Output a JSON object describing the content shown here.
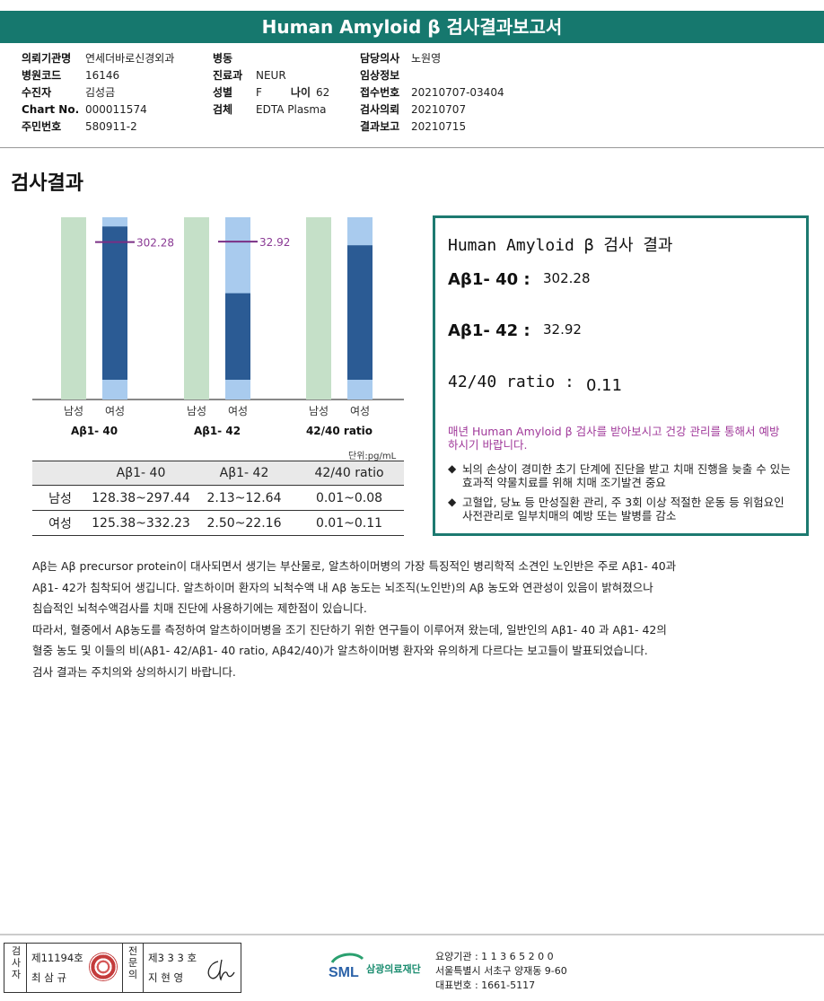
{
  "header": {
    "title": "Human Amyloid β 검사결과보고서"
  },
  "info": {
    "col_a": [
      {
        "k": "의뢰기관명",
        "v": "연세더바로신경외과"
      },
      {
        "k": "병원코드",
        "v": "16146"
      },
      {
        "k": "수진자",
        "v": "김성금"
      },
      {
        "k": "Chart No.",
        "v": "000011574"
      },
      {
        "k": "주민번호",
        "v": "580911-2"
      }
    ],
    "col_b": {
      "ward_k": "병동",
      "ward_v": "",
      "dept_k": "진료과",
      "dept_v": "NEUR",
      "sex_k": "성별",
      "sex_v": "F",
      "age_k": "나이",
      "age_v": "62",
      "specimen_k": "검체",
      "specimen_v": "EDTA Plasma"
    },
    "col_c": [
      {
        "k": "담당의사",
        "v": "노원영"
      },
      {
        "k": "임상정보",
        "v": ""
      },
      {
        "k": "접수번호",
        "v": "20210707-03404"
      },
      {
        "k": "검사의뢰",
        "v": "20210707"
      },
      {
        "k": "결과보고",
        "v": "20210715"
      }
    ]
  },
  "section_title": "검사결과",
  "chart_data": {
    "type": "bar",
    "groups": [
      "Aβ1- 40",
      "Aβ1- 42",
      "42/40 ratio"
    ],
    "sub_labels": [
      "남성",
      "여성"
    ],
    "series": [
      {
        "name": "남성",
        "ranges": [
          [
            128.38,
            297.44
          ],
          [
            2.13,
            12.64
          ],
          [
            0.01,
            0.08
          ]
        ]
      },
      {
        "name": "여성",
        "ranges": [
          [
            125.38,
            332.23
          ],
          [
            2.5,
            22.16
          ],
          [
            0.01,
            0.11
          ]
        ]
      }
    ],
    "patient_values": [
      302.28,
      32.92,
      null
    ],
    "patient_labels": [
      "302.28",
      "32.92",
      ""
    ],
    "colors": {
      "male_bar": "#c5e0c8",
      "female_bg": "#a9cbee",
      "female_range": "#2b5b94",
      "marker": "#7a2f85"
    }
  },
  "unit": "단위:pg/mL",
  "ref_table": {
    "headers": [
      "",
      "Aβ1- 40",
      "Aβ1- 42",
      "42/40 ratio"
    ],
    "rows": [
      [
        "남성",
        "128.38~297.44",
        "2.13~12.64",
        "0.01~0.08"
      ],
      [
        "여성",
        "125.38~332.23",
        "2.50~22.16",
        "0.01~0.11"
      ]
    ]
  },
  "result_box": {
    "title": "Human Amyloid β 검사 결과",
    "ab40_label": "Aβ1- 40 :",
    "ab40_value": "302.28",
    "ab42_label": "Aβ1- 42 :",
    "ab42_value": "32.92",
    "ratio_label": "42/40 ratio :",
    "ratio_value": "0.11",
    "note": "매년 Human Amyloid β 검사를 받아보시고 건강 관리를 통해서 예방하시기 바랍니다.",
    "bullet1": "뇌의 손상이 경미한 초기 단계에 진단을 받고 치매 진행을 늦출 수 있는 효과적 약물치료를 위해 치매 조기발견 중요",
    "bullet2": "고혈압, 당뇨 등 만성질환 관리, 주 3회 이상 적절한 운동 등 위험요인 사전관리로 일부치매의 예방 또는 발병를 감소"
  },
  "description": [
    "Aβ는 Aβ precursor protein이 대사되면서 생기는 부산물로, 알츠하이머병의 가장 특징적인 병리학적 소견인 노인반은 주로 Aβ1- 40과",
    "Aβ1- 42가 침착되어 생깁니다. 알츠하이머 환자의 뇌척수액 내 Aβ 농도는 뇌조직(노인반)의 Aβ 농도와 연관성이 있음이 밝혀졌으나",
    "침습적인 뇌척수액검사를 치매 진단에 사용하기에는 제한점이 있습니다.",
    "따라서, 혈중에서 Aβ농도를 측정하여 알츠하이머병을 조기 진단하기 위한 연구들이 이루어져 왔는데, 일반인의 Aβ1- 40 과 Aβ1- 42의",
    "혈중 농도 및 이들의 비(Aβ1- 42/Aβ1- 40 ratio, Aβ42/40)가 알츠하이머병 환자와 유의하게 다르다는 보고들이 발표되었습니다.",
    "검사 결과는 주치의와 상의하시기 바랍니다."
  ],
  "footer": {
    "examiner_label": "검사자",
    "examiner_license": "제11194호",
    "examiner_name": "최 삼 규",
    "reviewer_label": "전문의",
    "reviewer_license": "제3 3 3 호",
    "reviewer_name": "지 현 영",
    "logo_sml": "SML",
    "logo_name": "삼광의료재단",
    "inst_code": "요양기관 : 1 1 3 6 5 2 0 0",
    "inst_address": "서울특별시 서초구 양재동 9-60",
    "inst_phone": "대표번호 : 1661-5117"
  }
}
